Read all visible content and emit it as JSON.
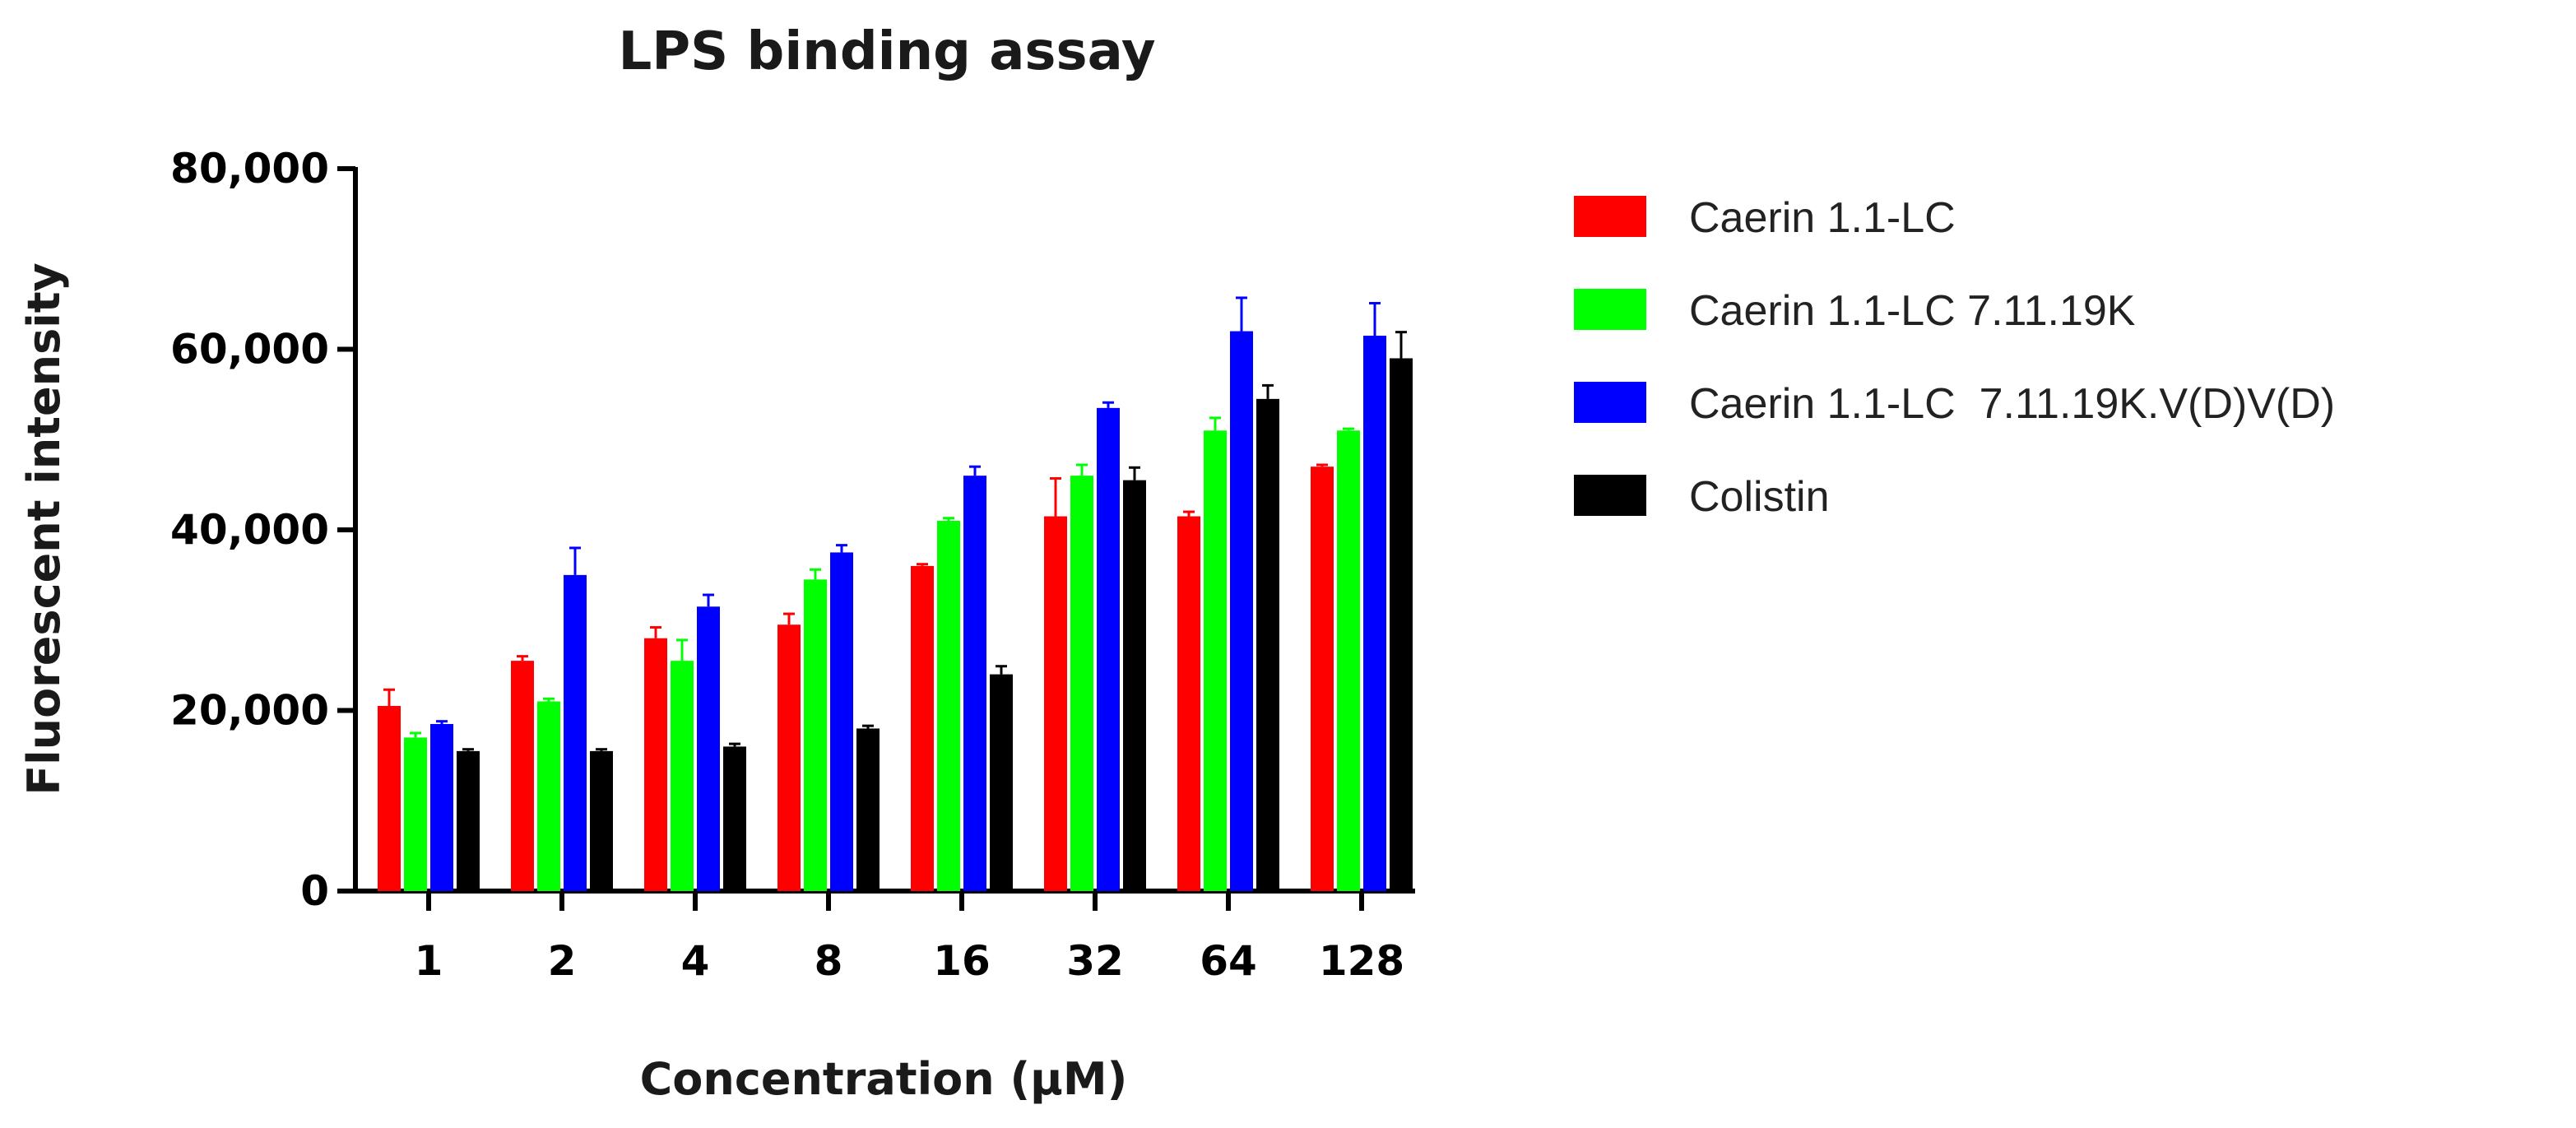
{
  "chart_data": {
    "type": "bar",
    "title": "LPS binding assay",
    "xlabel": "Concentration (µM)",
    "ylabel": "Fluorescent intensity",
    "ylim": [
      0,
      80000
    ],
    "yticks": [
      0,
      20000,
      40000,
      60000,
      80000
    ],
    "ytick_labels": [
      "0",
      "20,000",
      "40,000",
      "60,000",
      "80,000"
    ],
    "categories": [
      "1",
      "2",
      "4",
      "8",
      "16",
      "32",
      "64",
      "128"
    ],
    "grid": false,
    "legend_position": "right",
    "error_bars": "upper",
    "series": [
      {
        "name": "Caerin 1.1-LC",
        "color": "#ff0000",
        "values": [
          20500,
          25500,
          28000,
          29500,
          36000,
          41500,
          41500,
          47000
        ],
        "errors": [
          1800,
          500,
          1200,
          1200,
          200,
          4200,
          500,
          200
        ]
      },
      {
        "name": "Caerin 1.1-LC 7.11.19K",
        "color": "#00ff00",
        "values": [
          17000,
          21000,
          25500,
          34500,
          41000,
          46000,
          51000,
          51000
        ],
        "errors": [
          500,
          300,
          2300,
          1100,
          300,
          1200,
          1400,
          200
        ]
      },
      {
        "name": "Caerin 1.1-LC  7.11.19K.V(D)V(D)",
        "color": "#0000ff",
        "values": [
          18500,
          35000,
          31500,
          37500,
          46000,
          53500,
          62000,
          61500
        ],
        "errors": [
          300,
          3000,
          1300,
          800,
          1000,
          600,
          3700,
          3600
        ]
      },
      {
        "name": "Colistin",
        "color": "#000000",
        "values": [
          15500,
          15500,
          16000,
          18000,
          24000,
          45500,
          54500,
          59000
        ],
        "errors": [
          200,
          200,
          300,
          300,
          900,
          1400,
          1500,
          2900
        ]
      }
    ]
  }
}
